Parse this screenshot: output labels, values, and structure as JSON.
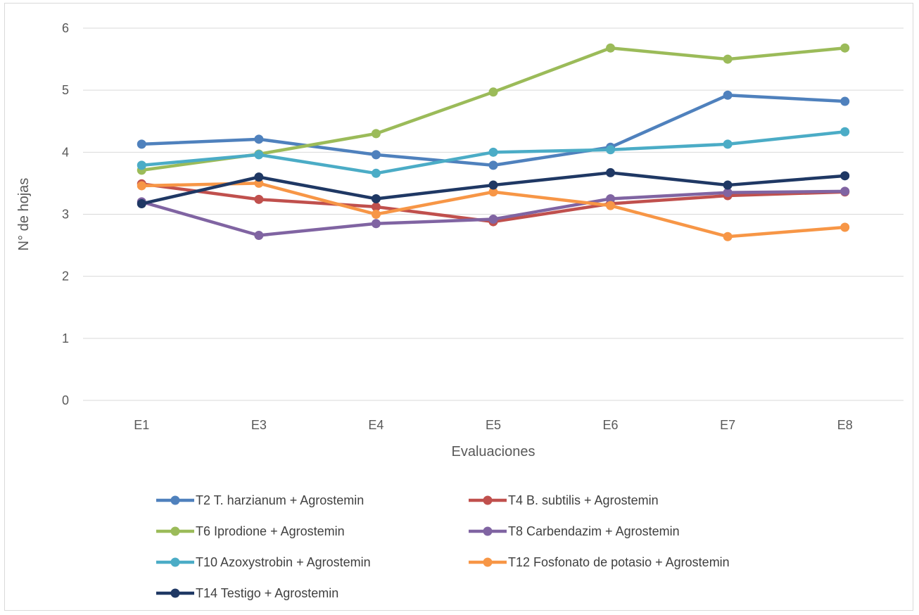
{
  "chart_data": {
    "type": "line",
    "title": "",
    "xlabel": "Evaluaciones",
    "ylabel": "N° de hojas",
    "categories": [
      "E1",
      "E3",
      "E4",
      "E5",
      "E6",
      "E7",
      "E8"
    ],
    "ylim": [
      0,
      6
    ],
    "yticks": [
      0,
      1,
      2,
      3,
      4,
      5,
      6
    ],
    "grid": true,
    "legend_position": "bottom",
    "series": [
      {
        "name": "T2 T. harzianum + Agrostemin",
        "color": "#4f81bd",
        "values": [
          4.13,
          4.21,
          3.96,
          3.79,
          4.08,
          4.92,
          4.82
        ]
      },
      {
        "name": "T4 B. subtilis + Agrostemin",
        "color": "#c0504d",
        "values": [
          3.49,
          3.24,
          3.12,
          2.88,
          3.17,
          3.3,
          3.36
        ]
      },
      {
        "name": "T6 Iprodione + Agrostemin",
        "color": "#9bbb59",
        "values": [
          3.71,
          3.97,
          4.3,
          4.97,
          5.68,
          5.5,
          5.68
        ]
      },
      {
        "name": "T8 Carbendazim + Agrostemin",
        "color": "#8064a2",
        "values": [
          3.2,
          2.66,
          2.85,
          2.92,
          3.25,
          3.35,
          3.37
        ]
      },
      {
        "name": "T10 Azoxystrobin + Agrostemin",
        "color": "#4bacc6",
        "values": [
          3.79,
          3.96,
          3.66,
          4.0,
          4.04,
          4.13,
          4.33
        ]
      },
      {
        "name": "T12 Fosfonato de potasio + Agrostemin",
        "color": "#f79646",
        "values": [
          3.46,
          3.5,
          3.0,
          3.36,
          3.14,
          2.64,
          2.79
        ]
      },
      {
        "name": "T14 Testigo + Agrostemin",
        "color": "#1f3864",
        "values": [
          3.17,
          3.6,
          3.25,
          3.47,
          3.67,
          3.47,
          3.62
        ]
      }
    ]
  }
}
